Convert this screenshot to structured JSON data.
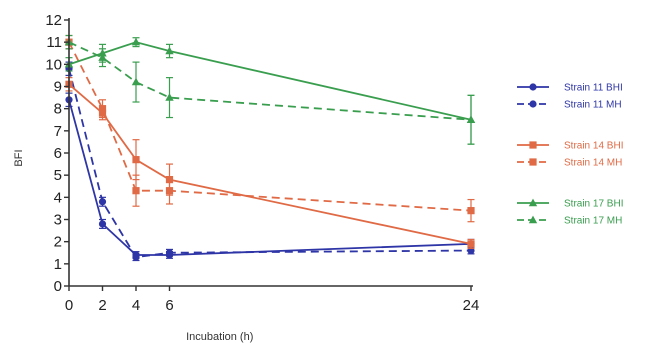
{
  "chart_data": {
    "type": "line",
    "xlabel": "Incubation (h)",
    "ylabel": "BFI",
    "xlim": [
      0,
      24
    ],
    "ylim": [
      0,
      12
    ],
    "xticks": [
      0,
      2,
      4,
      6,
      24
    ],
    "yticks": [
      0,
      1,
      2,
      3,
      4,
      5,
      6,
      7,
      8,
      9,
      10,
      11,
      12
    ],
    "grid": false,
    "legend_position": "right",
    "x": [
      0,
      2,
      4,
      6,
      24
    ],
    "series": [
      {
        "name": "Strain 11 BHI",
        "color": "#2e35a6",
        "dash": "solid",
        "marker": "circle",
        "values": [
          8.4,
          2.8,
          1.4,
          1.4,
          1.9
        ],
        "errors": [
          0.3,
          0.2,
          0.15,
          0.15,
          0.2
        ]
      },
      {
        "name": "Strain 11 MH",
        "color": "#2e35a6",
        "dash": "dashed",
        "marker": "circle",
        "values": [
          9.8,
          3.8,
          1.3,
          1.5,
          1.6
        ],
        "errors": [
          0.3,
          0.2,
          0.15,
          0.15,
          0.15
        ]
      },
      {
        "name": "Strain 14 BHI",
        "color": "#e06a45",
        "dash": "solid",
        "marker": "square",
        "values": [
          9.1,
          7.8,
          5.7,
          4.8,
          1.9
        ],
        "errors": [
          0.3,
          0.3,
          0.9,
          0.7,
          0.2
        ]
      },
      {
        "name": "Strain 14 MH",
        "color": "#e06a45",
        "dash": "dashed",
        "marker": "square",
        "values": [
          11.0,
          8.0,
          4.3,
          4.3,
          3.4
        ],
        "errors": [
          0.3,
          0.4,
          0.7,
          0.6,
          0.5
        ]
      },
      {
        "name": "Strain 17 BHI",
        "color": "#3a9e4f",
        "dash": "solid",
        "marker": "triangle",
        "values": [
          10.0,
          10.5,
          11.0,
          10.6,
          7.5
        ],
        "errors": [
          0.3,
          0.4,
          0.2,
          0.3,
          1.1
        ]
      },
      {
        "name": "Strain 17 MH",
        "color": "#3a9e4f",
        "dash": "dashed",
        "marker": "triangle",
        "values": [
          11.0,
          10.3,
          9.2,
          8.5,
          7.5
        ],
        "errors": [
          0.3,
          0.4,
          0.9,
          0.9,
          1.1
        ]
      }
    ]
  }
}
